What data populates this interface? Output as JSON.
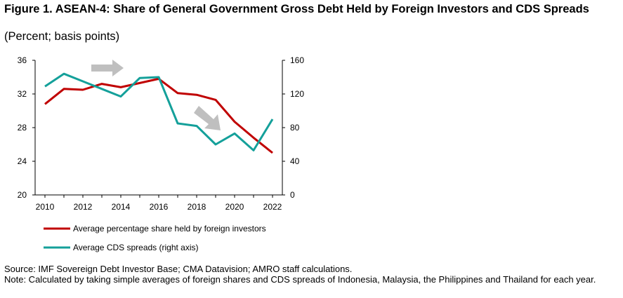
{
  "title": "Figure 1. ASEAN-4: Share of General Government Gross Debt Held by Foreign Investors and CDS Spreads",
  "subtitle": "(Percent; basis points)",
  "chart_data": {
    "type": "line",
    "x": [
      2010,
      2011,
      2012,
      2013,
      2014,
      2015,
      2016,
      2017,
      2018,
      2019,
      2020,
      2021,
      2022
    ],
    "x_ticks": [
      "2010",
      "2012",
      "2014",
      "2016",
      "2018",
      "2020",
      "2022"
    ],
    "y_left": {
      "range": [
        20,
        36
      ],
      "ticks": [
        "20",
        "24",
        "28",
        "32",
        "36"
      ]
    },
    "y_right": {
      "range": [
        0,
        160
      ],
      "ticks": [
        "0",
        "40",
        "80",
        "120",
        "160"
      ]
    },
    "series": [
      {
        "name": "Average percentage share held by foreign investors",
        "axis": "left",
        "color": "#c00000",
        "values": [
          30.8,
          32.6,
          32.5,
          33.2,
          32.8,
          33.3,
          33.8,
          32.1,
          31.9,
          31.3,
          28.7,
          26.8,
          25.0
        ]
      },
      {
        "name": "Average CDS spreads (right axis)",
        "axis": "right",
        "color": "#14a09a",
        "values": [
          129,
          144,
          135,
          126,
          117,
          139,
          140,
          85,
          82,
          60,
          73,
          53,
          90
        ]
      }
    ],
    "annotations": [
      {
        "type": "arrow",
        "direction": "right",
        "color": "#bfbfbf"
      },
      {
        "type": "arrow",
        "direction": "down-right",
        "color": "#bfbfbf"
      }
    ]
  },
  "source": "Source: IMF Sovereign Debt Investor Base; CMA Datavision; AMRO staff calculations.",
  "note": "Note: Calculated by taking simple averages of foreign shares and CDS spreads of Indonesia, Malaysia, the Philippines and Thailand for each year."
}
